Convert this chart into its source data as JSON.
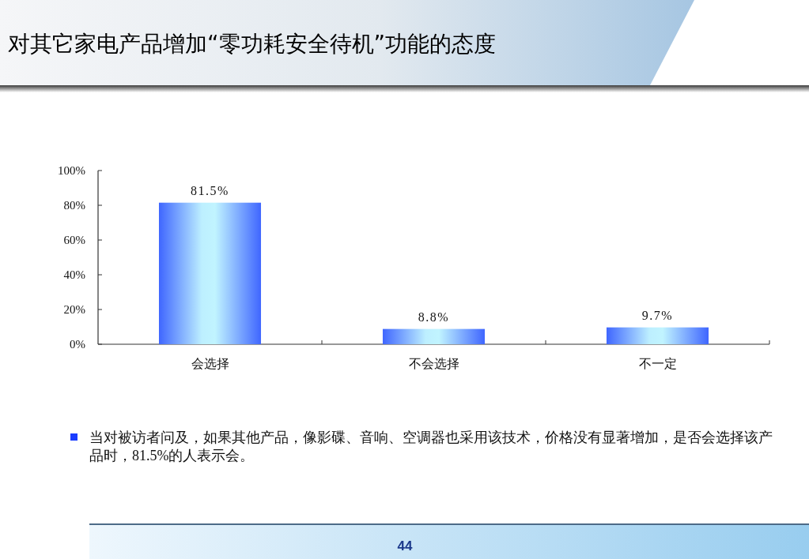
{
  "chart_data": {
    "type": "bar",
    "title": "对其它家电产品增加“零功耗安全待机”功能的态度",
    "categories": [
      "会选择",
      "不会选择",
      "不一定"
    ],
    "values": [
      81.5,
      8.8,
      9.7
    ],
    "color": "#3f66ff",
    "value_labels": [
      "81.5%",
      "8.8%",
      "9.7%"
    ],
    "ylim": [
      0,
      100
    ],
    "yticks": [
      {
        "value": 0,
        "label": "0%"
      },
      {
        "value": 20,
        "label": "20%"
      },
      {
        "value": 40,
        "label": "40%"
      },
      {
        "value": 60,
        "label": "60%"
      },
      {
        "value": 80,
        "label": "80%"
      },
      {
        "value": 100,
        "label": "100%"
      }
    ],
    "annotations": [
      "当对被访者问及，如果其他产品，像影碟、音响、空调器也采用该技术，价格没有显著增加，是否会选择该产品时，81.5%的人表示会。",
      "44"
    ]
  }
}
